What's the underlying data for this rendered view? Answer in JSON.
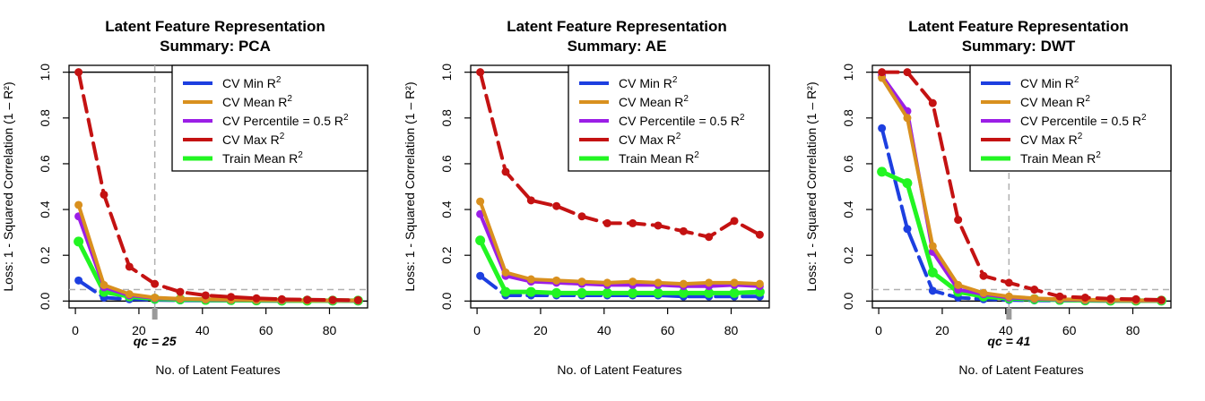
{
  "colors": {
    "cv_min": "#1d3fe0",
    "cv_mean": "#d9901e",
    "cv_pct": "#9b1ee6",
    "cv_max": "#c41212",
    "train_mean": "#22f522",
    "ref_line": "#b0b0b0"
  },
  "legend_labels": [
    "CV Min R",
    "CV Mean R",
    "CV Percentile = 0.5 R",
    "CV Max R",
    "Train Mean R"
  ],
  "legend_sup": "2",
  "chart_data": [
    {
      "type": "line",
      "title": "Latent Feature Representation",
      "subtitle": "Summary: PCA",
      "xlabel": "No. of Latent Features",
      "ylabel": "Loss: 1 - Squared Correlation (1 – R²)",
      "xlim": [
        -2,
        92
      ],
      "ylim": [
        -0.03,
        1.03
      ],
      "x_ticks": [
        0,
        20,
        40,
        60,
        80
      ],
      "y_ticks": [
        0.0,
        0.2,
        0.4,
        0.6,
        0.8,
        1.0
      ],
      "x_tick_labels": [
        "0",
        "20",
        "40",
        "60",
        "80"
      ],
      "y_tick_labels": [
        "0.0",
        "0.2",
        "0.4",
        "0.6",
        "0.8",
        "1.0"
      ],
      "threshold_y": 0.05,
      "qc": 25,
      "qc_label": "qc = 25",
      "x": [
        1,
        9,
        17,
        25,
        33,
        41,
        49,
        57,
        65,
        73,
        81,
        89
      ],
      "series": [
        {
          "key": "cv_min",
          "values": [
            0.09,
            0.015,
            0.008,
            0.005,
            0.003,
            0.002,
            0.002,
            0.001,
            0.001,
            0.001,
            0.001,
            0.001
          ]
        },
        {
          "key": "cv_mean",
          "values": [
            0.42,
            0.07,
            0.03,
            0.015,
            0.01,
            0.008,
            0.006,
            0.005,
            0.004,
            0.003,
            0.003,
            0.003
          ]
        },
        {
          "key": "cv_pct",
          "values": [
            0.37,
            0.06,
            0.025,
            0.013,
            0.009,
            0.007,
            0.005,
            0.004,
            0.003,
            0.003,
            0.002,
            0.002
          ]
        },
        {
          "key": "cv_max",
          "values": [
            1.0,
            0.465,
            0.15,
            0.075,
            0.04,
            0.025,
            0.018,
            0.012,
            0.008,
            0.006,
            0.005,
            0.004
          ]
        },
        {
          "key": "train_mean",
          "values": [
            0.26,
            0.04,
            0.02,
            0.01,
            0.007,
            0.005,
            0.004,
            0.003,
            0.002,
            0.002,
            0.002,
            0.002
          ]
        }
      ]
    },
    {
      "type": "line",
      "title": "Latent Feature Representation",
      "subtitle": "Summary: AE",
      "xlabel": "No. of Latent Features",
      "ylabel": "Loss: 1 - Squared Correlation (1 – R²)",
      "xlim": [
        -2,
        92
      ],
      "ylim": [
        -0.03,
        1.03
      ],
      "x_ticks": [
        0,
        20,
        40,
        60,
        80
      ],
      "y_ticks": [
        0.0,
        0.2,
        0.4,
        0.6,
        0.8,
        1.0
      ],
      "x_tick_labels": [
        "0",
        "20",
        "40",
        "60",
        "80"
      ],
      "y_tick_labels": [
        "0.0",
        "0.2",
        "0.4",
        "0.6",
        "0.8",
        "1.0"
      ],
      "threshold_y": null,
      "qc": null,
      "qc_label": "",
      "x": [
        1,
        9,
        17,
        25,
        33,
        41,
        49,
        57,
        65,
        73,
        81,
        89
      ],
      "series": [
        {
          "key": "cv_min",
          "values": [
            0.11,
            0.025,
            0.025,
            0.025,
            0.025,
            0.025,
            0.025,
            0.025,
            0.02,
            0.02,
            0.02,
            0.02
          ]
        },
        {
          "key": "cv_mean",
          "values": [
            0.435,
            0.125,
            0.095,
            0.09,
            0.085,
            0.08,
            0.085,
            0.08,
            0.075,
            0.08,
            0.08,
            0.075
          ]
        },
        {
          "key": "cv_pct",
          "values": [
            0.38,
            0.11,
            0.085,
            0.08,
            0.075,
            0.07,
            0.07,
            0.07,
            0.065,
            0.065,
            0.07,
            0.065
          ]
        },
        {
          "key": "cv_max",
          "values": [
            1.0,
            0.565,
            0.44,
            0.415,
            0.37,
            0.34,
            0.34,
            0.33,
            0.305,
            0.28,
            0.35,
            0.29
          ]
        },
        {
          "key": "train_mean",
          "values": [
            0.265,
            0.04,
            0.04,
            0.035,
            0.035,
            0.035,
            0.035,
            0.035,
            0.035,
            0.035,
            0.035,
            0.04
          ]
        }
      ]
    },
    {
      "type": "line",
      "title": "Latent Feature Representation",
      "subtitle": "Summary: DWT",
      "xlabel": "No. of Latent Features",
      "ylabel": "Loss: 1 - Squared Correlation (1 – R²)",
      "xlim": [
        -2,
        92
      ],
      "ylim": [
        -0.03,
        1.03
      ],
      "x_ticks": [
        0,
        20,
        40,
        60,
        80
      ],
      "y_ticks": [
        0.0,
        0.2,
        0.4,
        0.6,
        0.8,
        1.0
      ],
      "x_tick_labels": [
        "0",
        "20",
        "40",
        "60",
        "80"
      ],
      "y_tick_labels": [
        "0.0",
        "0.2",
        "0.4",
        "0.6",
        "0.8",
        "1.0"
      ],
      "threshold_y": 0.05,
      "qc": 41,
      "qc_label": "qc = 41",
      "x": [
        1,
        9,
        17,
        25,
        33,
        41,
        49,
        57,
        65,
        73,
        81,
        89
      ],
      "series": [
        {
          "key": "cv_min",
          "values": [
            0.755,
            0.315,
            0.045,
            0.015,
            0.008,
            0.005,
            0.003,
            0.002,
            0.002,
            0.001,
            0.001,
            0.001
          ]
        },
        {
          "key": "cv_mean",
          "values": [
            0.975,
            0.8,
            0.24,
            0.07,
            0.035,
            0.02,
            0.012,
            0.008,
            0.006,
            0.004,
            0.003,
            0.003
          ]
        },
        {
          "key": "cv_pct",
          "values": [
            0.985,
            0.83,
            0.215,
            0.05,
            0.03,
            0.015,
            0.01,
            0.006,
            0.004,
            0.003,
            0.002,
            0.002
          ]
        },
        {
          "key": "cv_max",
          "values": [
            1.0,
            1.0,
            0.865,
            0.355,
            0.11,
            0.08,
            0.05,
            0.02,
            0.015,
            0.01,
            0.008,
            0.005
          ]
        },
        {
          "key": "train_mean",
          "values": [
            0.565,
            0.515,
            0.125,
            0.04,
            0.02,
            0.012,
            0.008,
            0.005,
            0.003,
            0.002,
            0.002,
            0.002
          ]
        }
      ]
    }
  ]
}
